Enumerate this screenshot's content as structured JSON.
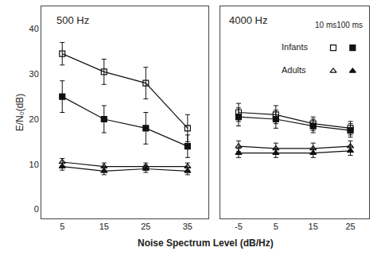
{
  "chart_data": [
    {
      "type": "line",
      "title": "500 Hz",
      "ylabel": "E/N₀(dB)",
      "xlabel": "Noise Spectrum Level (dB/Hz)",
      "x": [
        5,
        15,
        25,
        35
      ],
      "series": [
        {
          "color": "#111111",
          "marker": "square-open",
          "values": [
            34.5,
            30.5,
            28.0,
            18.0
          ],
          "error": [
            2.5,
            2.8,
            3.5,
            3.0
          ]
        },
        {
          "color": "#111111",
          "marker": "square",
          "values": [
            25.0,
            20.0,
            18.0,
            14.0
          ],
          "error": [
            3.5,
            3.0,
            3.5,
            2.5
          ]
        },
        {
          "color": "#111111",
          "marker": "triangle-up-open",
          "values": [
            10.5,
            9.5,
            9.5,
            9.5
          ],
          "error": [
            0.8,
            0.8,
            0.8,
            0.8
          ]
        },
        {
          "color": "#111111",
          "marker": "triangle-up",
          "values": [
            9.5,
            8.5,
            9.0,
            8.5
          ],
          "error": [
            0.8,
            0.8,
            0.8,
            0.8
          ]
        }
      ],
      "xlim": [
        0,
        40
      ],
      "xticks": [
        5,
        15,
        25,
        35
      ],
      "ylim": [
        -2,
        45
      ],
      "yticks": [
        0,
        10,
        20,
        30,
        40
      ],
      "grid": false
    },
    {
      "type": "line",
      "title": "4000 Hz",
      "x": [
        -5,
        5,
        15,
        25
      ],
      "series": [
        {
          "color": "#111111",
          "marker": "square-open",
          "values": [
            21.5,
            21.0,
            19.0,
            18.0
          ],
          "error": [
            2.0,
            2.0,
            1.5,
            1.5
          ]
        },
        {
          "color": "#111111",
          "marker": "square",
          "values": [
            20.5,
            20.0,
            18.5,
            17.5
          ],
          "error": [
            2.0,
            2.0,
            1.5,
            1.5
          ]
        },
        {
          "color": "#111111",
          "marker": "triangle-up-open",
          "values": [
            14.0,
            13.5,
            13.5,
            14.0
          ],
          "error": [
            1.2,
            1.2,
            1.2,
            1.2
          ]
        },
        {
          "color": "#111111",
          "marker": "triangle-up",
          "values": [
            12.5,
            12.5,
            12.5,
            13.0
          ],
          "error": [
            1.0,
            1.0,
            1.0,
            1.0
          ]
        }
      ],
      "xlim": [
        -10,
        30
      ],
      "xticks": [
        -5,
        5,
        15,
        25
      ],
      "ylim": [
        -2,
        45
      ],
      "yticks": [
        0,
        10,
        20,
        30,
        40
      ],
      "grid": false,
      "tick_labels": "x",
      "annotations": [
        "10 ms100 ms",
        "Infants",
        "Adults"
      ]
    }
  ]
}
